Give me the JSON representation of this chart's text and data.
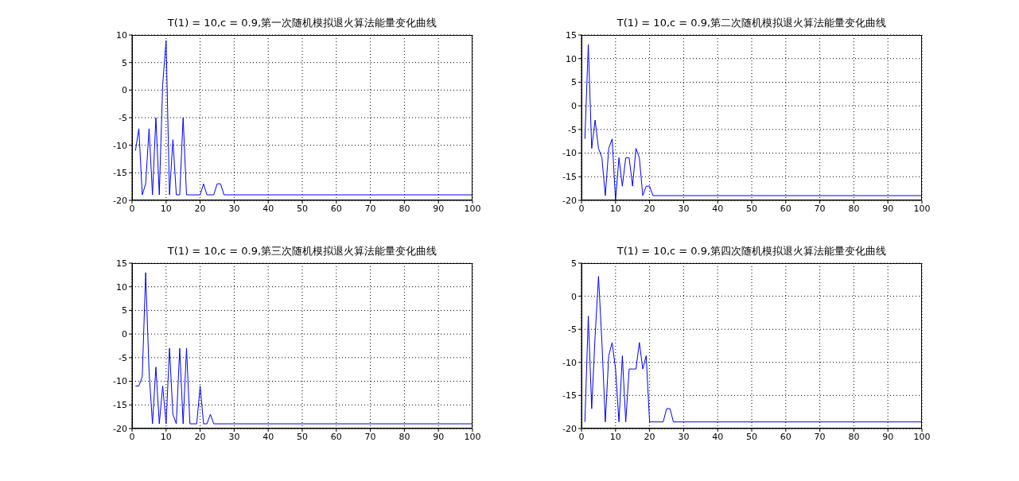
{
  "chart_data": [
    {
      "type": "line",
      "title": "T(1) = 10,c = 0.9,第一次随机模拟退火算法能量变化曲线",
      "color": "#0000ff",
      "grid": true,
      "xlim": [
        0,
        100
      ],
      "ylim": [
        -20,
        10
      ],
      "xticks": [
        0,
        10,
        20,
        30,
        40,
        50,
        60,
        70,
        80,
        90,
        100
      ],
      "yticks": [
        -20,
        -15,
        -10,
        -5,
        0,
        5,
        10
      ],
      "x": [
        1,
        2,
        3,
        4,
        5,
        6,
        7,
        8,
        9,
        10,
        11,
        12,
        13,
        14,
        15,
        16,
        20,
        21,
        22,
        24,
        25,
        26,
        27,
        100
      ],
      "values": [
        -11,
        -7,
        -19,
        -17,
        -7,
        -19,
        -5,
        -19,
        1,
        9,
        -19,
        -9,
        -19,
        -19,
        -5,
        -19,
        -19,
        -17,
        -19,
        -19,
        -17,
        -17,
        -19,
        -19
      ]
    },
    {
      "type": "line",
      "title": "T(1) = 10,c = 0.9,第二次随机模拟退火算法能量变化曲线",
      "color": "#0000ff",
      "grid": true,
      "xlim": [
        0,
        100
      ],
      "ylim": [
        -20,
        15
      ],
      "xticks": [
        0,
        10,
        20,
        30,
        40,
        50,
        60,
        70,
        80,
        90,
        100
      ],
      "yticks": [
        -20,
        -15,
        -10,
        -5,
        0,
        5,
        10,
        15
      ],
      "x": [
        1,
        2,
        3,
        4,
        5,
        6,
        7,
        8,
        9,
        10,
        11,
        12,
        13,
        14,
        15,
        16,
        17,
        18,
        19,
        20,
        21,
        100
      ],
      "values": [
        -7,
        13,
        -9,
        -3,
        -9,
        -11,
        -19,
        -9,
        -7,
        -20,
        -11,
        -17,
        -11,
        -11,
        -17,
        -9,
        -11,
        -19,
        -17,
        -17,
        -19,
        -19
      ]
    },
    {
      "type": "line",
      "title": "T(1) = 10,c = 0.9,第三次随机模拟退火算法能量变化曲线",
      "color": "#0000ff",
      "grid": true,
      "xlim": [
        0,
        100
      ],
      "ylim": [
        -20,
        15
      ],
      "xticks": [
        0,
        10,
        20,
        30,
        40,
        50,
        60,
        70,
        80,
        90,
        100
      ],
      "yticks": [
        -20,
        -15,
        -10,
        -5,
        0,
        5,
        10,
        15
      ],
      "x": [
        1,
        2,
        3,
        4,
        5,
        6,
        7,
        8,
        9,
        10,
        11,
        12,
        13,
        14,
        15,
        16,
        17,
        19,
        20,
        21,
        22,
        23,
        24,
        100
      ],
      "values": [
        -11,
        -11,
        -9,
        13,
        -8,
        -19,
        -7,
        -19,
        -11,
        -19,
        -3,
        -17,
        -19,
        -3,
        -19,
        -3,
        -19,
        -19,
        -11,
        -19,
        -19,
        -17,
        -19,
        -19
      ]
    },
    {
      "type": "line",
      "title": "T(1) = 10,c = 0.9,第四次随机模拟退火算法能量变化曲线",
      "color": "#0000ff",
      "grid": true,
      "xlim": [
        0,
        100
      ],
      "ylim": [
        -20,
        5
      ],
      "xticks": [
        0,
        10,
        20,
        30,
        40,
        50,
        60,
        70,
        80,
        90,
        100
      ],
      "yticks": [
        -20,
        -15,
        -10,
        -5,
        0,
        5
      ],
      "x": [
        1,
        2,
        3,
        4,
        5,
        6,
        7,
        8,
        9,
        10,
        11,
        12,
        13,
        14,
        15,
        16,
        17,
        18,
        19,
        20,
        24,
        25,
        26,
        27,
        100
      ],
      "values": [
        -19,
        -3,
        -17,
        -6,
        3,
        -7,
        -19,
        -9,
        -7,
        -11,
        -19,
        -9,
        -19,
        -11,
        -11,
        -11,
        -7,
        -11,
        -9,
        -19,
        -19,
        -17,
        -17,
        -19,
        -19
      ]
    }
  ]
}
